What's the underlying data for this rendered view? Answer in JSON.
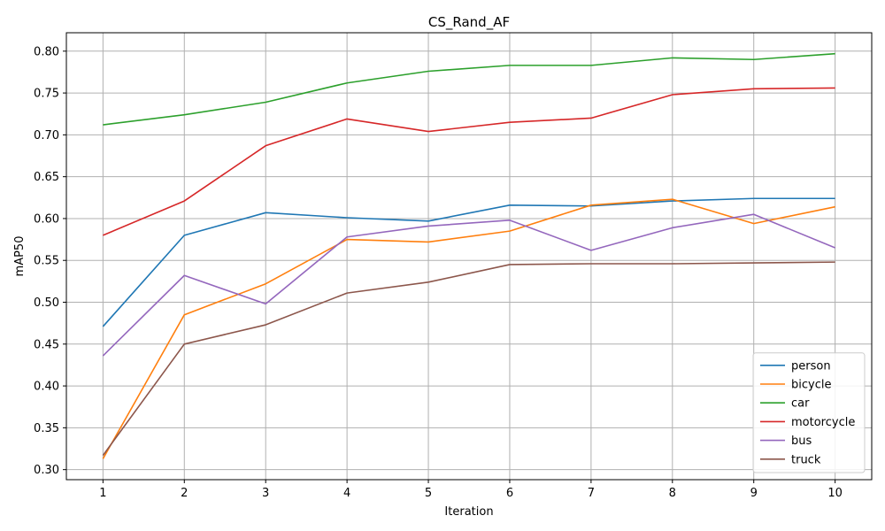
{
  "chart_data": {
    "type": "line",
    "title": "CS_Rand_AF",
    "xlabel": "Iteration",
    "ylabel": "mAP50",
    "x": [
      1,
      2,
      3,
      4,
      5,
      6,
      7,
      8,
      9,
      10
    ],
    "xticks": [
      "1",
      "2",
      "3",
      "4",
      "5",
      "6",
      "7",
      "8",
      "9",
      "10"
    ],
    "yticks": [
      "0.30",
      "0.35",
      "0.40",
      "0.45",
      "0.50",
      "0.55",
      "0.60",
      "0.65",
      "0.70",
      "0.75",
      "0.80"
    ],
    "xlim": [
      0.55,
      10.45
    ],
    "ylim": [
      0.288,
      0.822
    ],
    "grid": true,
    "legend_position": "lower right",
    "series": [
      {
        "name": "person",
        "color": "#1f77b4",
        "values": [
          0.471,
          0.58,
          0.607,
          0.601,
          0.597,
          0.616,
          0.615,
          0.621,
          0.624,
          0.624
        ]
      },
      {
        "name": "bicycle",
        "color": "#ff7f0e",
        "values": [
          0.313,
          0.485,
          0.522,
          0.575,
          0.572,
          0.585,
          0.616,
          0.623,
          0.594,
          0.614
        ]
      },
      {
        "name": "car",
        "color": "#2ca02c",
        "values": [
          0.712,
          0.724,
          0.739,
          0.762,
          0.776,
          0.783,
          0.783,
          0.792,
          0.79,
          0.797
        ]
      },
      {
        "name": "motorcycle",
        "color": "#d62728",
        "values": [
          0.58,
          0.621,
          0.687,
          0.719,
          0.704,
          0.715,
          0.72,
          0.748,
          0.755,
          0.756
        ]
      },
      {
        "name": "bus",
        "color": "#9467bd",
        "values": [
          0.436,
          0.532,
          0.498,
          0.578,
          0.591,
          0.598,
          0.562,
          0.589,
          0.605,
          0.565
        ]
      },
      {
        "name": "truck",
        "color": "#8c564b",
        "values": [
          0.317,
          0.45,
          0.473,
          0.511,
          0.524,
          0.545,
          0.546,
          0.546,
          0.547,
          0.548
        ]
      }
    ]
  }
}
